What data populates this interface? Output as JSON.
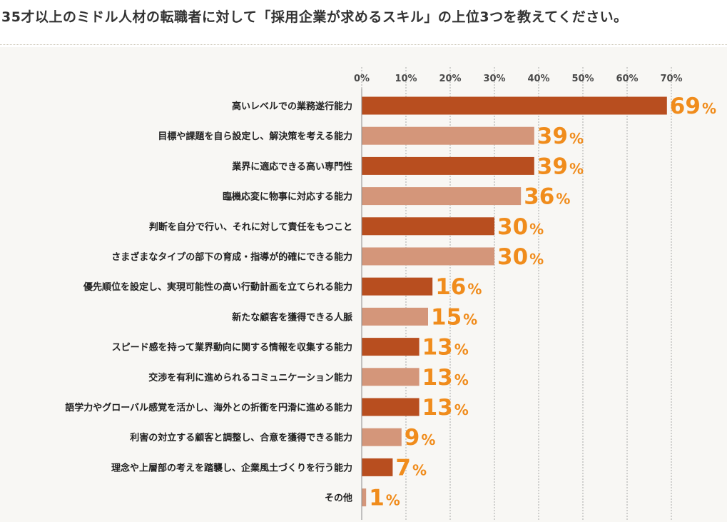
{
  "title": "35才以上のミドル人材の転職者に対して「採用企業が求めるスキル」の上位3つを教えてください。",
  "colors": {
    "dark": "#b84e1f",
    "light": "#d4967a",
    "value": "#f08c1c",
    "grid": "#a8a8a8",
    "label": "#222222"
  },
  "chart_data": {
    "type": "bar",
    "orientation": "horizontal",
    "xlim": [
      0,
      70
    ],
    "ticks": [
      "0%",
      "10%",
      "20%",
      "30%",
      "40%",
      "50%",
      "60%",
      "70%"
    ],
    "tick_values": [
      0,
      10,
      20,
      30,
      40,
      50,
      60,
      70
    ],
    "unit": "%",
    "grid": true,
    "categories": [
      "高いレベルでの業務遂行能力",
      "目標や課題を自ら設定し、解決策を考える能力",
      "業界に適応できる高い専門性",
      "臨機応変に物事に対応する能力",
      "判断を自分で行い、それに対して責任をもつこと",
      "さまざまなタイプの部下の育成・指導が的確にできる能力",
      "優先順位を設定し、実現可能性の高い行動計画を立てられる能力",
      "新たな顧客を獲得できる人脈",
      "スピード感を持って業界動向に関する情報を収集する能力",
      "交渉を有利に進められるコミュニケーション能力",
      "語学力やグローバル感覚を活かし、海外との折衝を円滑に進める能力",
      "利害の対立する顧客と調整し、合意を獲得できる能力",
      "理念や上層部の考えを踏襲し、企業風土づくりを行う能力",
      "その他"
    ],
    "values": [
      69,
      39,
      39,
      36,
      30,
      30,
      16,
      15,
      13,
      13,
      13,
      9,
      7,
      1
    ]
  }
}
